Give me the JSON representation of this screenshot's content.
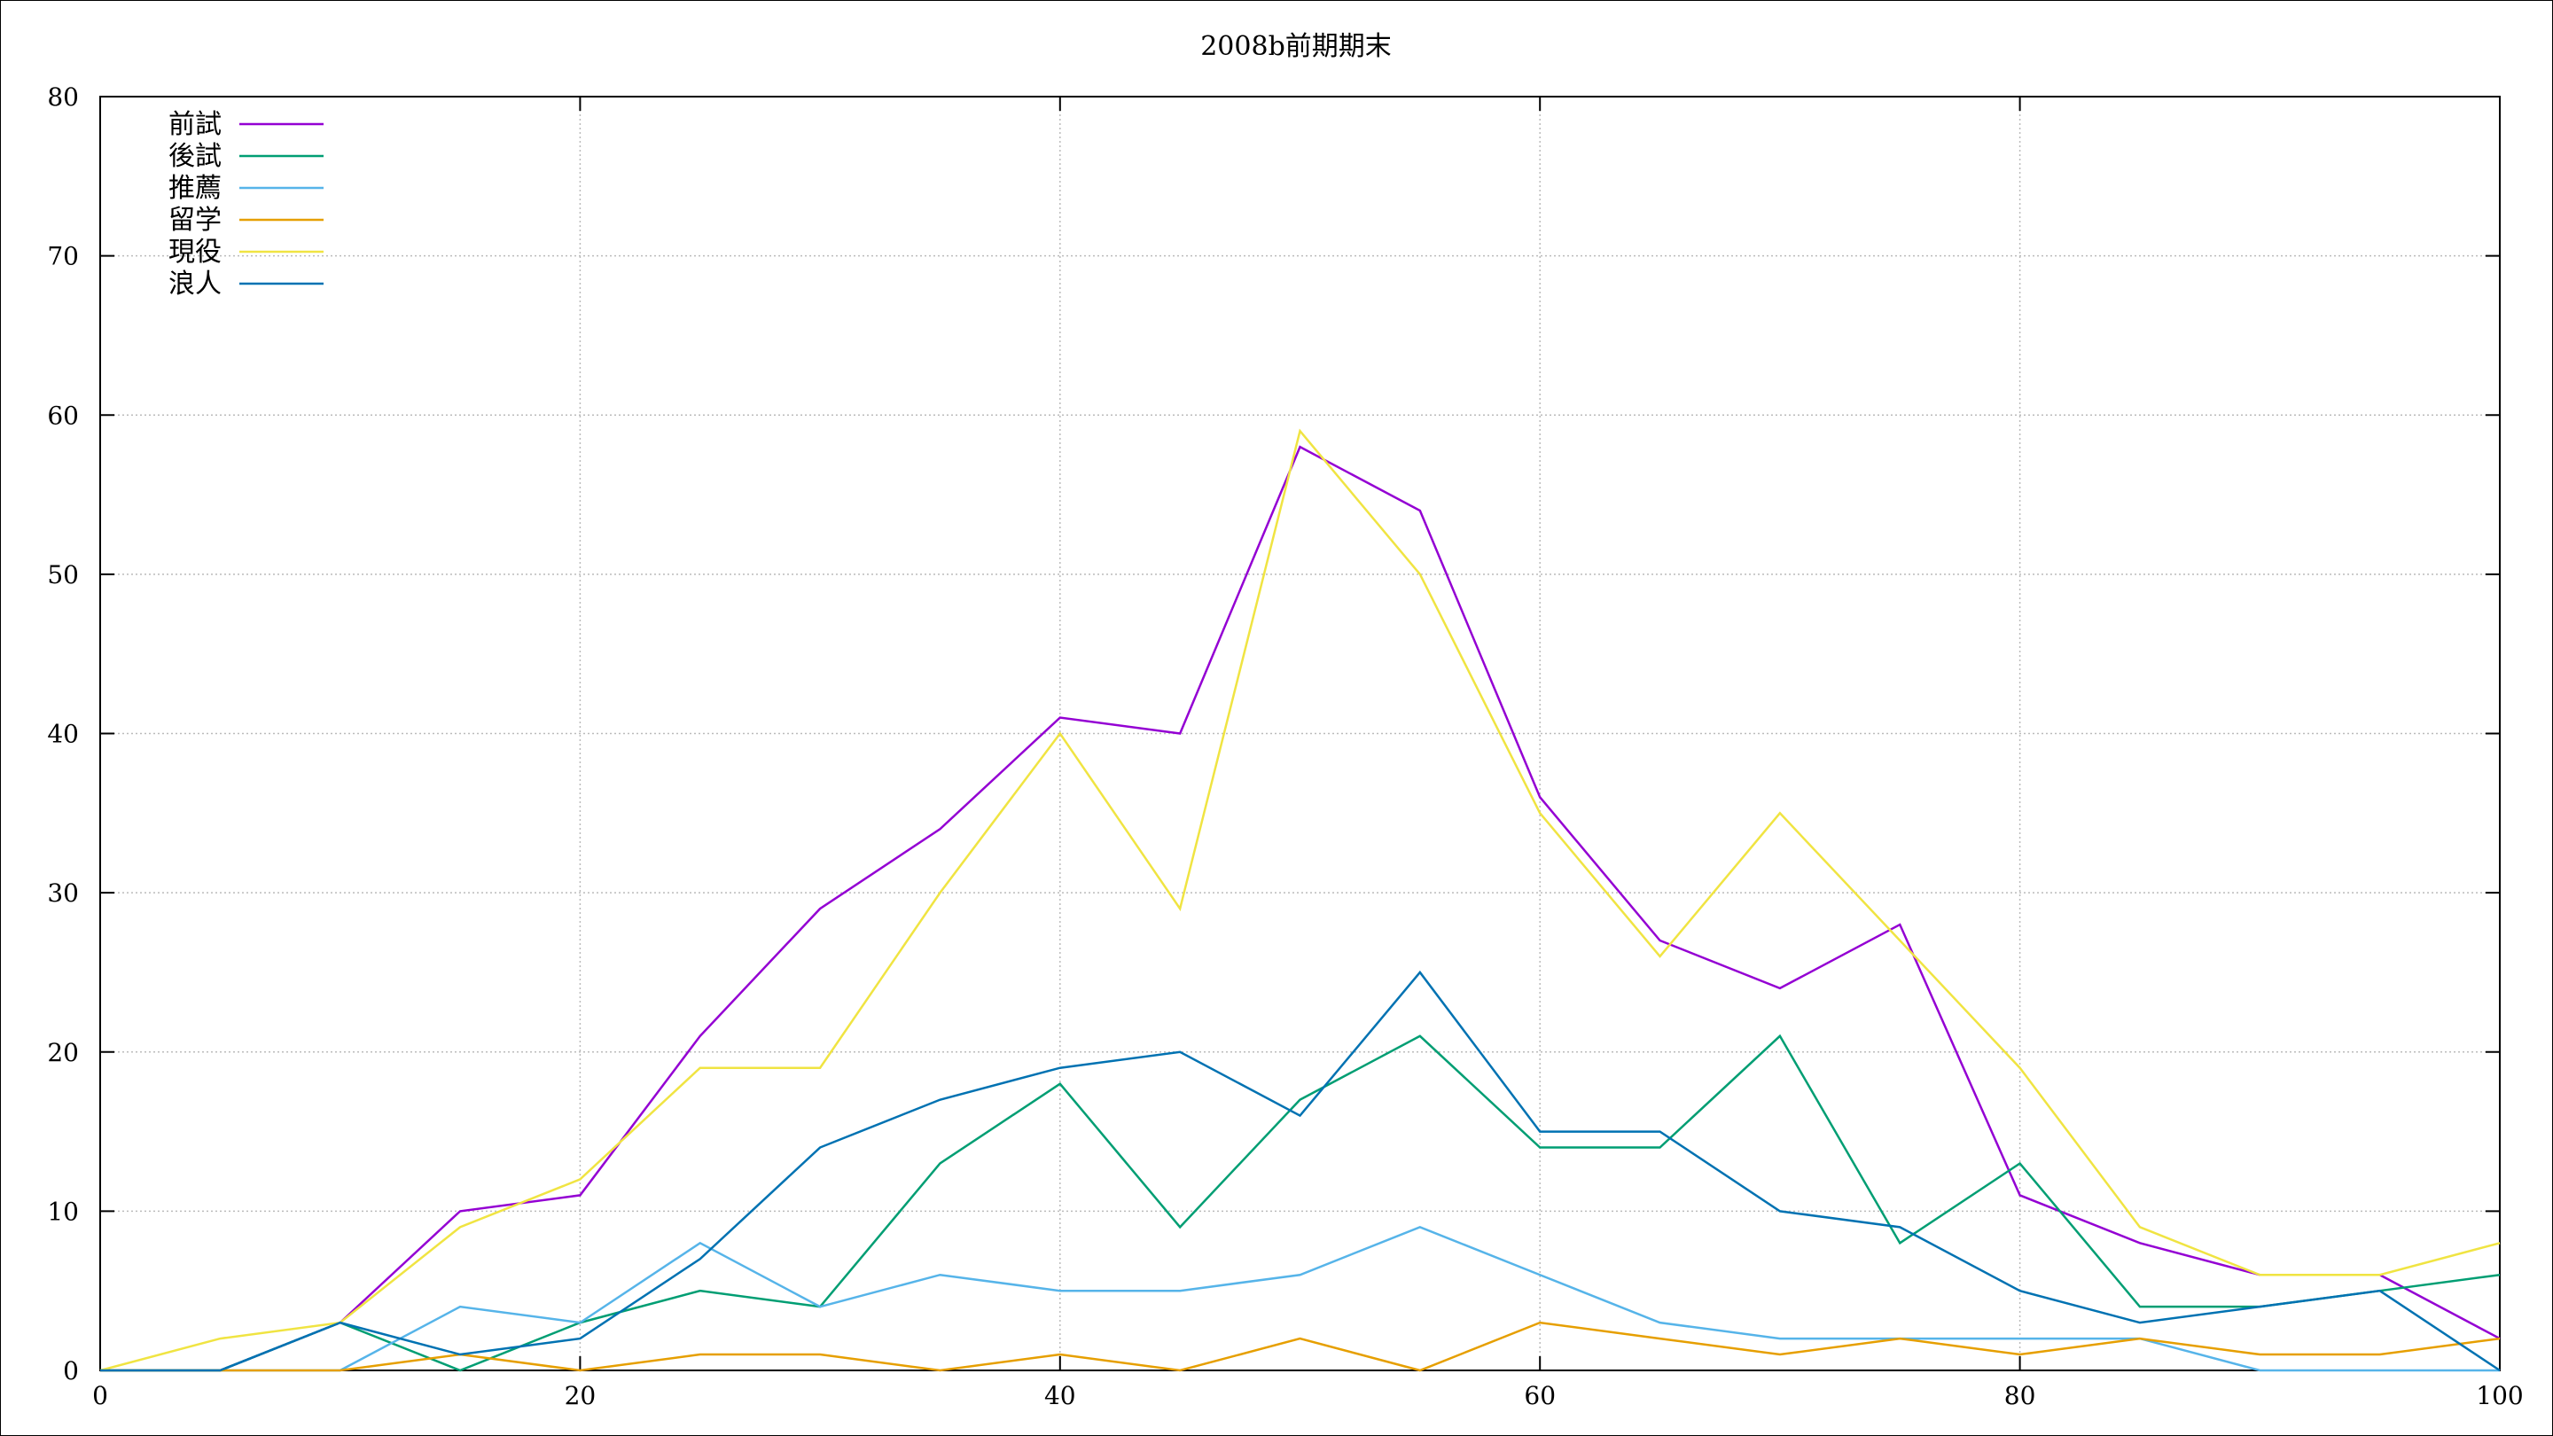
{
  "chart_data": {
    "type": "line",
    "title": "2008b前期期末",
    "xlabel": "",
    "ylabel": "",
    "xlim": [
      0,
      100
    ],
    "ylim": [
      0,
      80
    ],
    "xticks": [
      0,
      20,
      40,
      60,
      80,
      100
    ],
    "yticks": [
      0,
      10,
      20,
      30,
      40,
      50,
      60,
      70,
      80
    ],
    "grid": true,
    "legend_position": "top-left",
    "x": [
      0,
      5,
      10,
      15,
      20,
      25,
      30,
      35,
      40,
      45,
      50,
      55,
      60,
      65,
      70,
      75,
      80,
      85,
      90,
      95,
      100
    ],
    "series": [
      {
        "name": "前試",
        "color": "#9400d3",
        "values": [
          0,
          0,
          3,
          10,
          11,
          21,
          29,
          34,
          41,
          40,
          58,
          54,
          36,
          27,
          24,
          28,
          11,
          8,
          6,
          6,
          2
        ]
      },
      {
        "name": "後試",
        "color": "#009e73",
        "values": [
          0,
          0,
          3,
          0,
          3,
          5,
          4,
          13,
          18,
          9,
          17,
          21,
          14,
          14,
          21,
          8,
          13,
          4,
          4,
          5,
          6
        ]
      },
      {
        "name": "推薦",
        "color": "#56b4e9",
        "values": [
          0,
          0,
          0,
          4,
          3,
          8,
          4,
          6,
          5,
          5,
          6,
          9,
          6,
          3,
          2,
          2,
          2,
          2,
          0,
          0,
          0
        ]
      },
      {
        "name": "留学",
        "color": "#e69f00",
        "values": [
          0,
          0,
          0,
          1,
          0,
          1,
          1,
          0,
          1,
          0,
          2,
          0,
          3,
          2,
          1,
          2,
          1,
          2,
          1,
          1,
          2
        ]
      },
      {
        "name": "現役",
        "color": "#f0e442",
        "values": [
          0,
          2,
          3,
          9,
          12,
          19,
          19,
          30,
          40,
          29,
          59,
          50,
          35,
          26,
          35,
          27,
          19,
          9,
          6,
          6,
          8
        ]
      },
      {
        "name": "浪人",
        "color": "#0072b2",
        "values": [
          0,
          0,
          3,
          1,
          2,
          7,
          14,
          17,
          19,
          20,
          16,
          25,
          15,
          15,
          10,
          9,
          5,
          3,
          4,
          5,
          0
        ]
      }
    ]
  }
}
